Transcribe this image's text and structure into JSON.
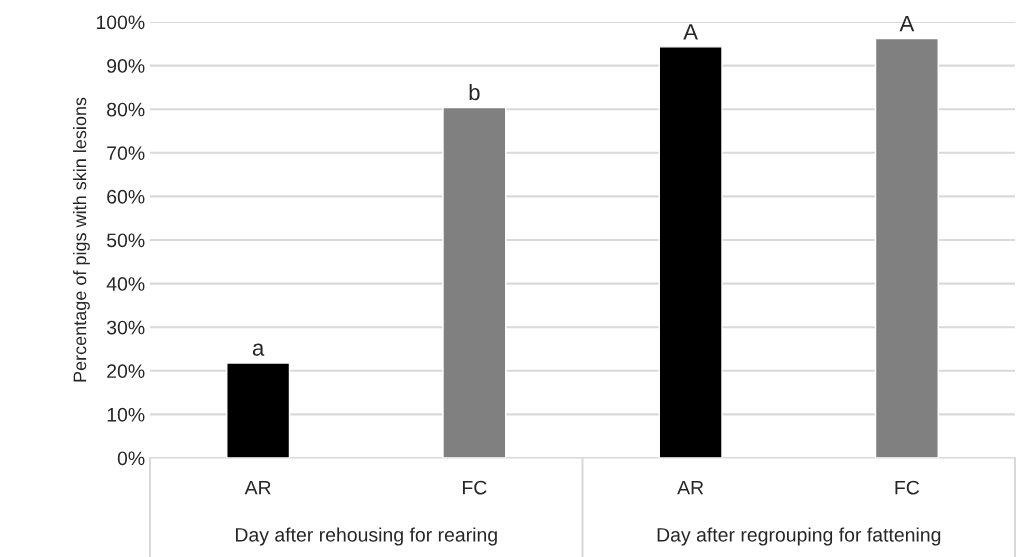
{
  "chart_data": {
    "type": "bar",
    "ylabel": "Percentage of pigs with skin lesions",
    "categories": [
      "AR",
      "FC",
      "AR",
      "FC"
    ],
    "values": [
      21.8,
      80.4,
      94.3,
      96.2
    ],
    "colors": [
      "#000000",
      "#808080",
      "#000000",
      "#808080"
    ],
    "value_labels": [
      "a",
      "b",
      "A",
      "A"
    ],
    "annotations": [
      "Day after rehousing for rearing",
      "Day after regrouping for fattening"
    ],
    "ylim": [
      0,
      100
    ],
    "yticks": [
      {
        "value": 0,
        "label": "0%"
      },
      {
        "value": 10,
        "label": "10%"
      },
      {
        "value": 20,
        "label": "20%"
      },
      {
        "value": 30,
        "label": "30%"
      },
      {
        "value": 40,
        "label": "40%"
      },
      {
        "value": 50,
        "label": "50%"
      },
      {
        "value": 60,
        "label": "60%"
      },
      {
        "value": 70,
        "label": "70%"
      },
      {
        "value": 80,
        "label": "80%"
      },
      {
        "value": 90,
        "label": "90%"
      },
      {
        "value": 100,
        "label": "100%"
      }
    ],
    "grid": "y",
    "legend": false
  }
}
